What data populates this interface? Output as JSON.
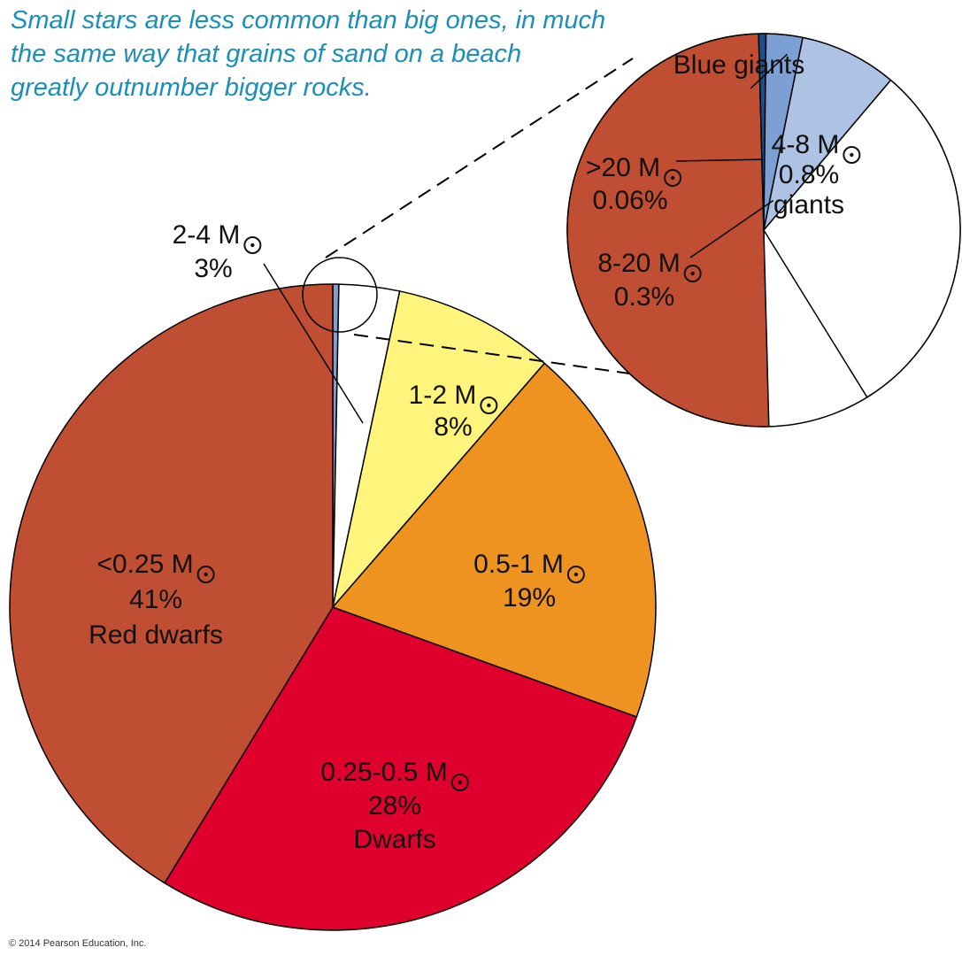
{
  "caption": {
    "lines": [
      "Small stars are less common than big ones, in much",
      "the same way that grains of sand on a beach",
      "greatly outnumber bigger rocks."
    ]
  },
  "copyright": "© 2014 Pearson Education, Inc.",
  "colors": {
    "red_dwarfs": "#bf4e33",
    "dwarfs": "#e0002e",
    "sun_like": "#ef9320",
    "mid": "#fff47c",
    "giants_2_4": "#ffffff",
    "giants_4_8": "#aec3e4",
    "blue_8_20": "#7c9fd4",
    "blue_20": "#1e4f8a",
    "caption": "#1a8fb8"
  },
  "chart_data": {
    "type": "pie",
    "title": "",
    "slices": [
      {
        "key": "lt025",
        "label": "<0.25 M",
        "percent": 41,
        "value_text": "41%",
        "group": "Red dwarfs",
        "color": "#bf4e33"
      },
      {
        "key": "025_05",
        "label": "0.25-0.5 M",
        "percent": 28,
        "value_text": "28%",
        "group": "Dwarfs",
        "color": "#e0002e"
      },
      {
        "key": "05_1",
        "label": "0.5-1 M",
        "percent": 19,
        "value_text": "19%",
        "group": "",
        "color": "#ef9320"
      },
      {
        "key": "1_2",
        "label": "1-2 M",
        "percent": 8,
        "value_text": "8%",
        "group": "",
        "color": "#fff47c"
      },
      {
        "key": "2_4",
        "label": "2-4 M",
        "percent": 3,
        "value_text": "3%",
        "group": "",
        "color": "#ffffff"
      },
      {
        "key": "4_8",
        "label": "4-8 M",
        "percent": 0.8,
        "value_text": "0.8%",
        "group": "giants",
        "color": "#aec3e4"
      },
      {
        "key": "8_20",
        "label": "8-20 M",
        "percent": 0.3,
        "value_text": "0.3%",
        "group": "",
        "color": "#7c9fd4"
      },
      {
        "key": "gt20",
        "label": ">20 M",
        "percent": 0.06,
        "value_text": "0.06%",
        "group": "",
        "color": "#1e4f8a"
      }
    ],
    "inset_title": "Blue giants",
    "solar_symbol": "☉"
  }
}
